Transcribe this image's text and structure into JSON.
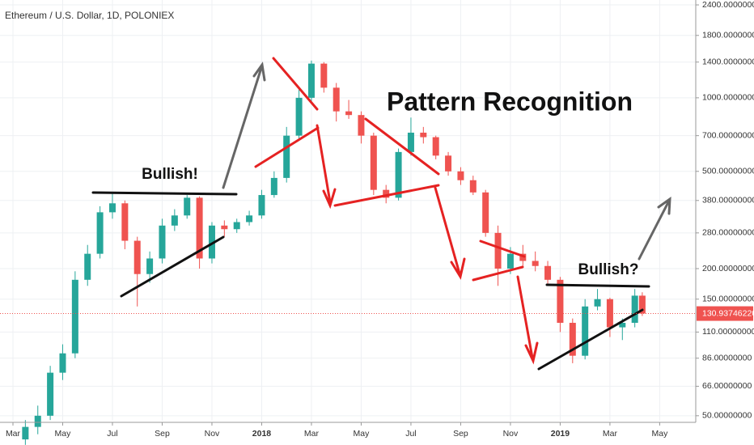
{
  "chart_data": {
    "type": "candlestick",
    "title": "Ethereum / U.S. Dollar, 1D, POLONIEX",
    "annotations": [
      "Bullish!",
      "Pattern Recognition",
      "Bullish?"
    ],
    "log_scale": true,
    "grid": true,
    "up_color": "#26a69a",
    "down_color": "#ef5350",
    "xlim": [
      -0.52,
      27.45
    ],
    "xticks": [
      {
        "value": 0,
        "label": "Mar"
      },
      {
        "value": 2,
        "label": "May"
      },
      {
        "value": 4,
        "label": "Jul"
      },
      {
        "value": 6,
        "label": "Sep"
      },
      {
        "value": 8,
        "label": "Nov"
      },
      {
        "value": 10,
        "label": "2018"
      },
      {
        "value": 12,
        "label": "Mar"
      },
      {
        "value": 14,
        "label": "May"
      },
      {
        "value": 16,
        "label": "Jul"
      },
      {
        "value": 18,
        "label": "Sep"
      },
      {
        "value": 20,
        "label": "Nov"
      },
      {
        "value": 22,
        "label": "2019"
      },
      {
        "value": 24,
        "label": "Mar"
      },
      {
        "value": 26,
        "label": "May"
      }
    ],
    "ylim": [
      47.7,
      2513
    ],
    "yticks": [
      {
        "value": 2400,
        "label": "2400.00000000"
      },
      {
        "value": 1800,
        "label": "1800.00000000"
      },
      {
        "value": 1400,
        "label": "1400.00000000"
      },
      {
        "value": 1000,
        "label": "1000.00000000"
      },
      {
        "value": 700,
        "label": "700.00000000"
      },
      {
        "value": 500,
        "label": "500.00000000"
      },
      {
        "value": 380,
        "label": "380.00000000"
      },
      {
        "value": 280,
        "label": "280.00000000"
      },
      {
        "value": 200,
        "label": "200.00000000"
      },
      {
        "value": 150,
        "label": "150.00000000"
      },
      {
        "value": 110,
        "label": "110.00000000"
      },
      {
        "value": 86,
        "label": "86.00000000"
      },
      {
        "value": 66,
        "label": "66.00000000"
      },
      {
        "value": 50,
        "label": "50.00000000"
      }
    ],
    "last_price": {
      "value": 130.9374622,
      "label": "130.93746220"
    },
    "x": [
      0.5,
      1,
      1.5,
      2,
      2.5,
      3,
      3.5,
      4,
      4.5,
      5,
      5.5,
      6,
      6.5,
      7,
      7.5,
      8,
      8.5,
      9,
      9.5,
      10,
      10.5,
      11,
      11.5,
      12,
      12.5,
      13,
      13.5,
      14,
      14.5,
      15,
      15.5,
      16,
      16.5,
      17,
      17.5,
      18,
      18.5,
      19,
      19.5,
      20,
      20.5,
      21,
      21.5,
      22,
      22.5,
      23,
      23.5,
      24,
      24.5,
      25,
      25.3
    ],
    "open": [
      40,
      45,
      50,
      75,
      90,
      180,
      230,
      340,
      370,
      260,
      190,
      220,
      300,
      330,
      390,
      220,
      300,
      290,
      310,
      330,
      400,
      470,
      700,
      1000,
      1380,
      1100,
      880,
      850,
      700,
      420,
      390,
      600,
      720,
      690,
      580,
      500,
      460,
      410,
      280,
      200,
      230,
      215,
      205,
      180,
      120,
      88,
      140,
      150,
      115,
      120,
      155
    ],
    "high": [
      48,
      55,
      80,
      98,
      195,
      250,
      360,
      410,
      380,
      270,
      235,
      320,
      350,
      400,
      395,
      310,
      315,
      320,
      345,
      420,
      500,
      760,
      1080,
      1420,
      1400,
      1150,
      980,
      880,
      720,
      440,
      620,
      830,
      760,
      700,
      600,
      520,
      480,
      420,
      300,
      245,
      250,
      235,
      215,
      185,
      125,
      150,
      165,
      152,
      125,
      165,
      160
    ],
    "low": [
      38,
      42,
      48,
      70,
      86,
      170,
      220,
      320,
      240,
      140,
      175,
      210,
      285,
      320,
      200,
      210,
      270,
      280,
      300,
      320,
      390,
      450,
      680,
      960,
      1050,
      800,
      820,
      650,
      400,
      370,
      380,
      580,
      650,
      560,
      480,
      440,
      400,
      270,
      170,
      190,
      205,
      195,
      170,
      110,
      82,
      85,
      135,
      105,
      102,
      115,
      128
    ],
    "close": [
      45,
      50,
      75,
      90,
      180,
      230,
      340,
      370,
      260,
      190,
      220,
      300,
      330,
      390,
      220,
      300,
      290,
      310,
      330,
      400,
      470,
      700,
      1000,
      1380,
      1100,
      880,
      850,
      700,
      420,
      390,
      600,
      720,
      690,
      580,
      500,
      460,
      410,
      280,
      200,
      230,
      215,
      205,
      180,
      120,
      88,
      140,
      150,
      115,
      120,
      155,
      131
    ]
  }
}
